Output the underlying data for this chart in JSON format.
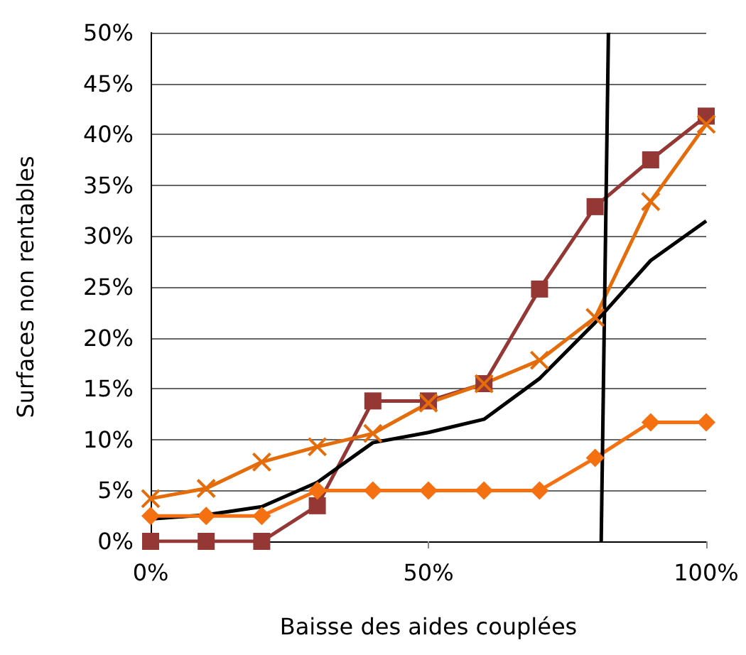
{
  "chart_data": {
    "type": "line",
    "xlabel": "Baisse des aides couplées",
    "ylabel": "Surfaces non rentables",
    "x": [
      0,
      10,
      20,
      30,
      40,
      50,
      60,
      70,
      80,
      90,
      100
    ],
    "series": [
      {
        "color": "#953735",
        "marker": "square",
        "values": [
          0,
          0,
          0,
          3.5,
          13.8,
          13.8,
          15.5,
          24.8,
          32.9,
          37.5,
          41.8
        ]
      },
      {
        "color": "#e46c0a",
        "marker": "cross",
        "values": [
          4.2,
          5.2,
          7.8,
          9.3,
          10.6,
          13.6,
          15.5,
          17.8,
          22,
          33.4,
          41
        ]
      },
      {
        "color": "#000000",
        "marker": "none",
        "values": [
          2.2,
          2.6,
          3.4,
          5.8,
          9.7,
          10.7,
          12,
          16,
          21.5,
          27.6,
          31.5
        ]
      },
      {
        "color": "#f57010",
        "marker": "diamond",
        "values": [
          2.5,
          2.5,
          2.5,
          5,
          5,
          5,
          5,
          5,
          8.2,
          11.7,
          11.7
        ]
      },
      {
        "color": "#000000",
        "marker": "none",
        "x": [
          81.1,
          82.4
        ],
        "values": [
          0,
          50
        ]
      }
    ],
    "xlim": [
      0,
      100
    ],
    "xticks": [
      {
        "value": 0,
        "label": "0%"
      },
      {
        "value": 50,
        "label": "50%"
      },
      {
        "value": 100,
        "label": "100%"
      }
    ],
    "ylim": [
      0,
      50
    ],
    "yticks": [
      {
        "value": 0,
        "label": "0%"
      },
      {
        "value": 5,
        "label": "5%"
      },
      {
        "value": 10,
        "label": "10%"
      },
      {
        "value": 15,
        "label": "15%"
      },
      {
        "value": 20,
        "label": "20%"
      },
      {
        "value": 25,
        "label": "25%"
      },
      {
        "value": 30,
        "label": "30%"
      },
      {
        "value": 35,
        "label": "35%"
      },
      {
        "value": 40,
        "label": "40%"
      },
      {
        "value": 45,
        "label": "45%"
      },
      {
        "value": 50,
        "label": "50%"
      }
    ],
    "grid": "y"
  }
}
